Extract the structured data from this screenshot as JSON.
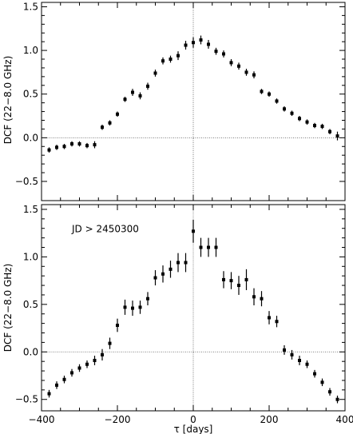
{
  "chart_data": [
    {
      "type": "scatter",
      "ylabel": "DCF (22−8.0 GHz)",
      "xlabel": "",
      "annotation": "",
      "xlim": [
        -400,
        400
      ],
      "ylim": [
        -0.72,
        1.55
      ],
      "xticks": [
        -400,
        -200,
        0,
        200,
        400
      ],
      "xtick_labels": [
        "",
        "",
        "",
        "",
        ""
      ],
      "yticks": [
        -0.5,
        0,
        0.5,
        1,
        1.5
      ],
      "ytick_labels": [
        "−0.5",
        "0.0",
        "0.5",
        "1.0",
        "1.5"
      ],
      "reference_lines": {
        "x": 0,
        "y": 0
      },
      "error_bars": true,
      "points": [
        {
          "x": -380,
          "y": -0.14,
          "err": 0.03
        },
        {
          "x": -360,
          "y": -0.11,
          "err": 0.03
        },
        {
          "x": -340,
          "y": -0.1,
          "err": 0.03
        },
        {
          "x": -320,
          "y": -0.07,
          "err": 0.03
        },
        {
          "x": -300,
          "y": -0.07,
          "err": 0.03
        },
        {
          "x": -280,
          "y": -0.09,
          "err": 0.03
        },
        {
          "x": -260,
          "y": -0.08,
          "err": 0.04
        },
        {
          "x": -240,
          "y": 0.12,
          "err": 0.03
        },
        {
          "x": -220,
          "y": 0.17,
          "err": 0.03
        },
        {
          "x": -200,
          "y": 0.27,
          "err": 0.03
        },
        {
          "x": -180,
          "y": 0.44,
          "err": 0.03
        },
        {
          "x": -160,
          "y": 0.52,
          "err": 0.04
        },
        {
          "x": -140,
          "y": 0.48,
          "err": 0.04
        },
        {
          "x": -120,
          "y": 0.59,
          "err": 0.04
        },
        {
          "x": -100,
          "y": 0.74,
          "err": 0.04
        },
        {
          "x": -80,
          "y": 0.88,
          "err": 0.04
        },
        {
          "x": -60,
          "y": 0.9,
          "err": 0.04
        },
        {
          "x": -40,
          "y": 0.94,
          "err": 0.05
        },
        {
          "x": -20,
          "y": 1.06,
          "err": 0.05
        },
        {
          "x": 0,
          "y": 1.09,
          "err": 0.06
        },
        {
          "x": 20,
          "y": 1.12,
          "err": 0.05
        },
        {
          "x": 40,
          "y": 1.07,
          "err": 0.05
        },
        {
          "x": 60,
          "y": 0.99,
          "err": 0.04
        },
        {
          "x": 80,
          "y": 0.96,
          "err": 0.04
        },
        {
          "x": 100,
          "y": 0.86,
          "err": 0.04
        },
        {
          "x": 120,
          "y": 0.82,
          "err": 0.04
        },
        {
          "x": 140,
          "y": 0.75,
          "err": 0.04
        },
        {
          "x": 160,
          "y": 0.72,
          "err": 0.04
        },
        {
          "x": 180,
          "y": 0.53,
          "err": 0.03
        },
        {
          "x": 200,
          "y": 0.5,
          "err": 0.03
        },
        {
          "x": 220,
          "y": 0.42,
          "err": 0.03
        },
        {
          "x": 240,
          "y": 0.33,
          "err": 0.03
        },
        {
          "x": 260,
          "y": 0.28,
          "err": 0.03
        },
        {
          "x": 280,
          "y": 0.22,
          "err": 0.03
        },
        {
          "x": 300,
          "y": 0.18,
          "err": 0.03
        },
        {
          "x": 320,
          "y": 0.14,
          "err": 0.03
        },
        {
          "x": 340,
          "y": 0.13,
          "err": 0.03
        },
        {
          "x": 360,
          "y": 0.07,
          "err": 0.03
        },
        {
          "x": 380,
          "y": 0.02,
          "err": 0.05
        }
      ]
    },
    {
      "type": "scatter",
      "ylabel": "DCF (22−8.0 GHz)",
      "xlabel": "τ [days]",
      "annotation": "JD > 2450300",
      "xlim": [
        -400,
        400
      ],
      "ylim": [
        -0.62,
        1.55
      ],
      "xticks": [
        -400,
        -200,
        0,
        200,
        400
      ],
      "xtick_labels": [
        "−400",
        "−200",
        "0",
        "200",
        "400"
      ],
      "yticks": [
        -0.5,
        0,
        0.5,
        1,
        1.5
      ],
      "ytick_labels": [
        "−0.5",
        "0.0",
        "0.5",
        "1.0",
        "1.5"
      ],
      "reference_lines": {
        "x": 0,
        "y": 0
      },
      "error_bars": true,
      "points": [
        {
          "x": -380,
          "y": -0.44,
          "err": 0.04
        },
        {
          "x": -360,
          "y": -0.35,
          "err": 0.04
        },
        {
          "x": -340,
          "y": -0.29,
          "err": 0.04
        },
        {
          "x": -320,
          "y": -0.22,
          "err": 0.04
        },
        {
          "x": -300,
          "y": -0.17,
          "err": 0.04
        },
        {
          "x": -280,
          "y": -0.13,
          "err": 0.04
        },
        {
          "x": -260,
          "y": -0.09,
          "err": 0.05
        },
        {
          "x": -240,
          "y": -0.03,
          "err": 0.06
        },
        {
          "x": -220,
          "y": 0.09,
          "err": 0.06
        },
        {
          "x": -200,
          "y": 0.28,
          "err": 0.07
        },
        {
          "x": -180,
          "y": 0.47,
          "err": 0.08
        },
        {
          "x": -160,
          "y": 0.46,
          "err": 0.08
        },
        {
          "x": -140,
          "y": 0.47,
          "err": 0.07
        },
        {
          "x": -120,
          "y": 0.56,
          "err": 0.07
        },
        {
          "x": -100,
          "y": 0.78,
          "err": 0.08
        },
        {
          "x": -80,
          "y": 0.82,
          "err": 0.09
        },
        {
          "x": -60,
          "y": 0.87,
          "err": 0.09
        },
        {
          "x": -40,
          "y": 0.94,
          "err": 0.1
        },
        {
          "x": -20,
          "y": 0.94,
          "err": 0.1
        },
        {
          "x": 0,
          "y": 1.27,
          "err": 0.12
        },
        {
          "x": 20,
          "y": 1.1,
          "err": 0.1
        },
        {
          "x": 40,
          "y": 1.1,
          "err": 0.1
        },
        {
          "x": 60,
          "y": 1.1,
          "err": 0.1
        },
        {
          "x": 80,
          "y": 0.76,
          "err": 0.09
        },
        {
          "x": 100,
          "y": 0.75,
          "err": 0.09
        },
        {
          "x": 120,
          "y": 0.7,
          "err": 0.1
        },
        {
          "x": 140,
          "y": 0.76,
          "err": 0.11
        },
        {
          "x": 160,
          "y": 0.58,
          "err": 0.09
        },
        {
          "x": 180,
          "y": 0.56,
          "err": 0.08
        },
        {
          "x": 200,
          "y": 0.36,
          "err": 0.07
        },
        {
          "x": 220,
          "y": 0.32,
          "err": 0.06
        },
        {
          "x": 240,
          "y": 0.02,
          "err": 0.05
        },
        {
          "x": 260,
          "y": -0.03,
          "err": 0.05
        },
        {
          "x": 280,
          "y": -0.09,
          "err": 0.05
        },
        {
          "x": 300,
          "y": -0.13,
          "err": 0.04
        },
        {
          "x": 320,
          "y": -0.23,
          "err": 0.04
        },
        {
          "x": 340,
          "y": -0.32,
          "err": 0.04
        },
        {
          "x": 360,
          "y": -0.42,
          "err": 0.04
        },
        {
          "x": 380,
          "y": -0.5,
          "err": 0.04
        }
      ]
    }
  ]
}
